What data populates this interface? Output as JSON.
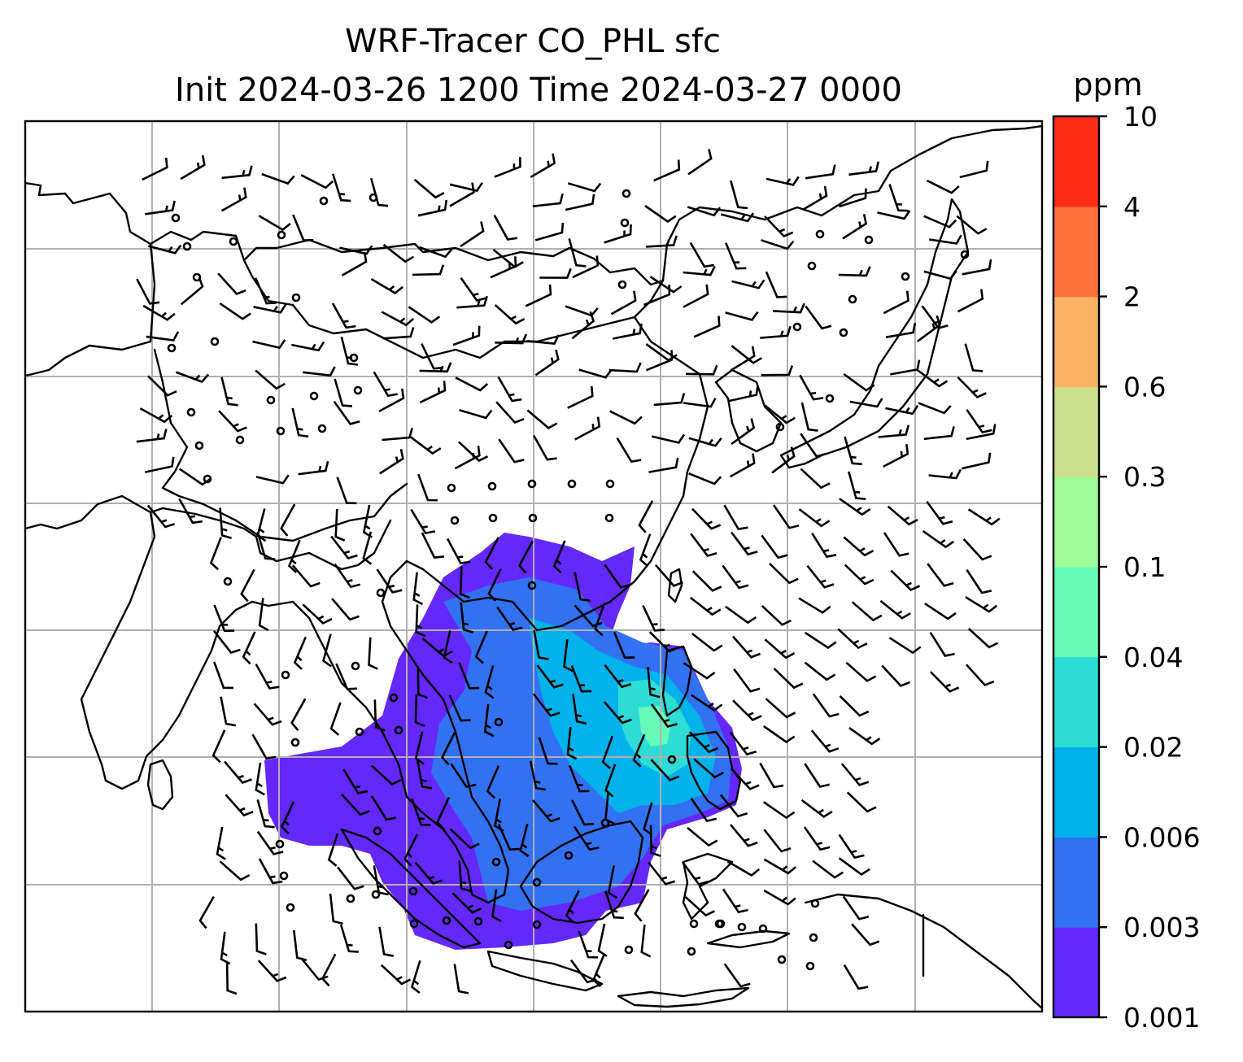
{
  "title": {
    "line1": "WRF-Tracer CO_PHL sfc",
    "line2": "Init 2024-03-26 1200 Time 2024-03-27 0000"
  },
  "colorbar": {
    "unit_label": "ppm",
    "ticks": [
      "0.001",
      "0.003",
      "0.006",
      "0.02",
      "0.04",
      "0.1",
      "0.3",
      "0.6",
      "2",
      "4",
      "10"
    ],
    "colors": [
      "#6428fa",
      "#3272f2",
      "#02b2ea",
      "#2ddcd5",
      "#66fbb9",
      "#9dfb98",
      "#cce08c",
      "#fdb165",
      "#ff713a",
      "#ff2c14"
    ]
  },
  "map": {
    "projection": "lat-lon",
    "gridlines": true,
    "coastlines": true,
    "borders": true,
    "wind_barbs": true,
    "tracer_field": "CO_PHL",
    "level": "sfc",
    "units": "ppm"
  }
}
